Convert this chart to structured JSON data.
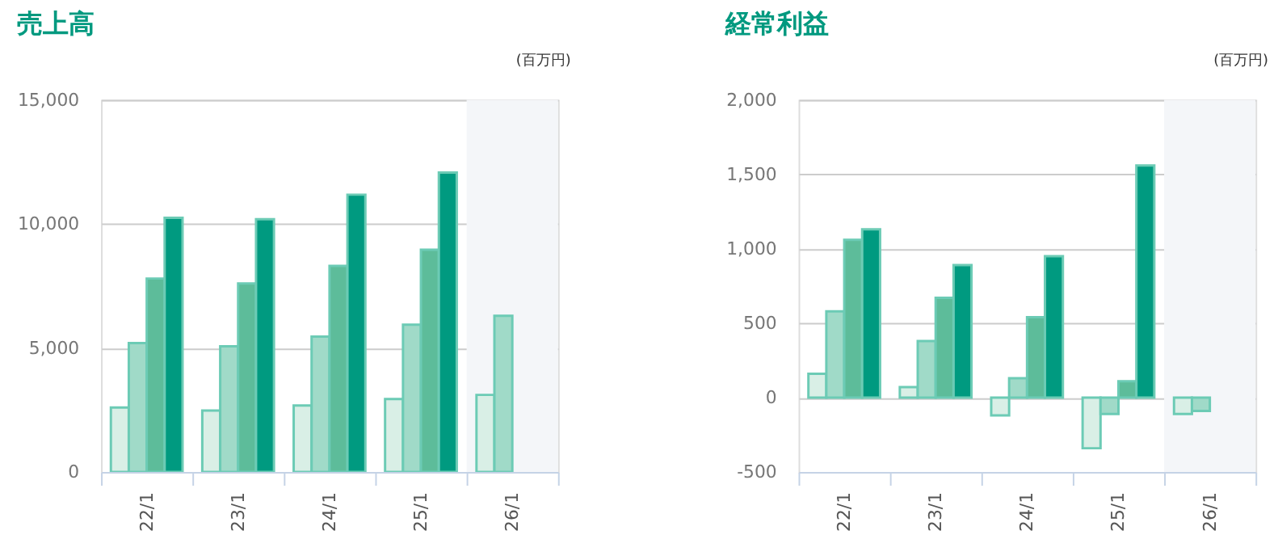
{
  "chart_data": [
    {
      "type": "bar",
      "title": "売上高",
      "annotations": [
        "(百万円)"
      ],
      "categories": [
        "22/1",
        "23/1",
        "24/1",
        "25/1",
        "26/1"
      ],
      "series": [
        {
          "color": "#d9efe6",
          "values": [
            2600,
            2480,
            2680,
            2940,
            3110
          ]
        },
        {
          "color": "#a0dac8",
          "values": [
            5200,
            5070,
            5460,
            5940,
            6300
          ]
        },
        {
          "color": "#5dbc9a",
          "values": [
            7800,
            7600,
            8310,
            8960,
            null
          ]
        },
        {
          "color": "#009a80",
          "values": [
            10250,
            10190,
            11180,
            12070,
            null
          ]
        }
      ],
      "ylim": [
        0,
        15000
      ],
      "yticks": [
        {
          "value": 0,
          "label": "0"
        },
        {
          "value": 5000,
          "label": "5,000"
        },
        {
          "value": 10000,
          "label": "10,000"
        },
        {
          "value": 15000,
          "label": "15,000"
        }
      ],
      "grid": "y",
      "bands": [
        {
          "axis": "x",
          "from": "26/1",
          "to": "26/1",
          "color": "#f4f6f9"
        }
      ]
    },
    {
      "type": "bar",
      "title": "経常利益",
      "annotations": [
        "(百万円)"
      ],
      "categories": [
        "22/1",
        "23/1",
        "24/1",
        "25/1",
        "26/1"
      ],
      "series": [
        {
          "color": "#d9efe6",
          "values": [
            160,
            70,
            -120,
            -340,
            -110
          ]
        },
        {
          "color": "#a0dac8",
          "values": [
            580,
            380,
            130,
            -110,
            -90
          ]
        },
        {
          "color": "#5dbc9a",
          "values": [
            1060,
            670,
            540,
            110,
            null
          ]
        },
        {
          "color": "#009a80",
          "values": [
            1130,
            890,
            950,
            1560,
            null
          ]
        }
      ],
      "ylim": [
        -500,
        2000
      ],
      "yticks": [
        {
          "value": -500,
          "label": "-500"
        },
        {
          "value": 0,
          "label": "0"
        },
        {
          "value": 500,
          "label": "500"
        },
        {
          "value": 1000,
          "label": "1,000"
        },
        {
          "value": 1500,
          "label": "1,500"
        },
        {
          "value": 2000,
          "label": "2,000"
        }
      ],
      "grid": "y",
      "bands": [
        {
          "axis": "x",
          "from": "26/1",
          "to": "26/1",
          "color": "#f4f6f9"
        }
      ]
    }
  ]
}
